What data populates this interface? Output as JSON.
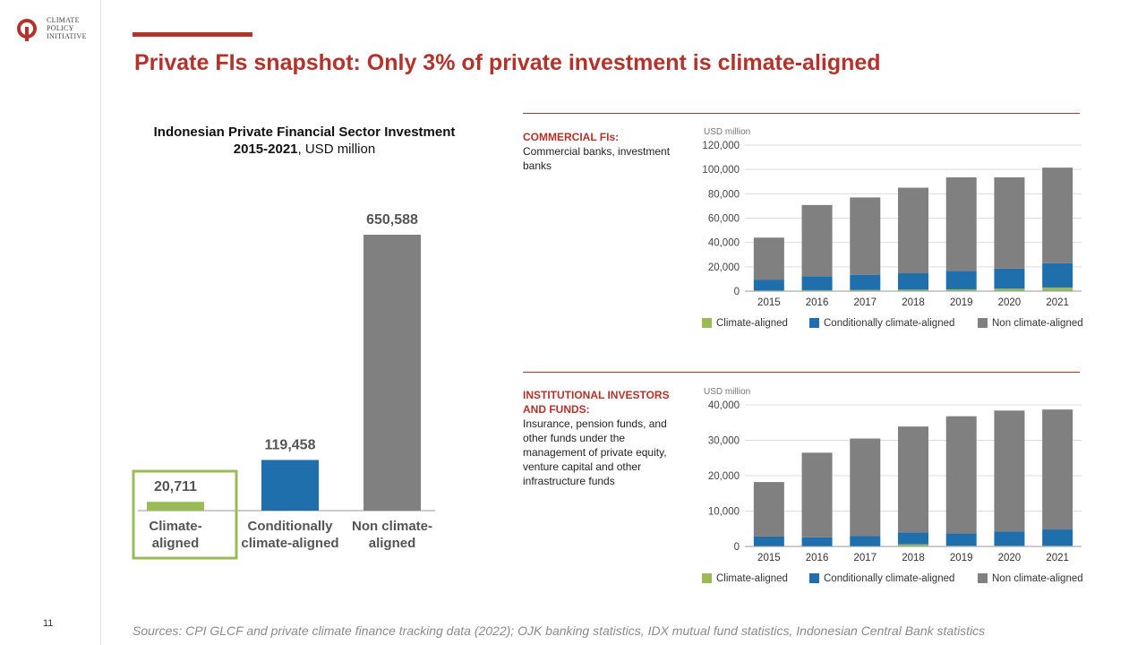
{
  "slide_number": "11",
  "logo": {
    "line1": "CLIMATE",
    "line2": "POLICY",
    "line3": "INITIATIVE"
  },
  "title": "Private FIs snapshot: Only 3% of private investment is climate-aligned",
  "left_chart_title_bold": "Indonesian Private Financial Sector Investment",
  "left_chart_title_bold2": "2015-2021",
  "left_chart_title_rest": ", USD million",
  "commercial": {
    "heading": "COMMERCIAL FIs:",
    "desc": "Commercial banks, investment banks"
  },
  "institutional": {
    "heading": "INSTITUTIONAL INVESTORS AND FUNDS:",
    "desc": "Insurance, pension funds, and other funds under the management of private equity, venture capital and other infrastructure funds"
  },
  "sources": "Sources: CPI GLCF and private climate finance tracking data (2022); OJK banking statistics, IDX mutual fund statistics, Indonesian Central Bank statistics",
  "colors": {
    "climate": "#9bbb59",
    "conditional": "#1f6fad",
    "non": "#808080",
    "accent": "#b5322b",
    "highlight": "#9bbb59"
  },
  "chart_data": [
    {
      "type": "bar",
      "title": "Indonesian Private Financial Sector Investment 2015-2021, USD million",
      "categories": [
        "Climate-aligned",
        "Conditionally climate-aligned",
        "Non climate-aligned"
      ],
      "category_lines": [
        [
          "Climate-",
          "aligned"
        ],
        [
          "Conditionally",
          "climate-aligned"
        ],
        [
          "Non climate-",
          "aligned"
        ]
      ],
      "values": [
        20711,
        119458,
        650588
      ],
      "value_labels": [
        "20,711",
        "119,458",
        "650,588"
      ],
      "highlighted": "Climate-aligned"
    },
    {
      "type": "bar",
      "stacked": true,
      "ylabel": "USD million",
      "ylim": [
        0,
        120000
      ],
      "ticks": [
        0,
        20000,
        40000,
        60000,
        80000,
        100000,
        120000
      ],
      "tick_labels": [
        "0",
        "20,000",
        "40,000",
        "60,000",
        "80,000",
        "100,000",
        "120,000"
      ],
      "categories": [
        "2015",
        "2016",
        "2017",
        "2018",
        "2019",
        "2020",
        "2021"
      ],
      "legend_position": "bottom",
      "series": [
        {
          "name": "Climate-aligned",
          "values": [
            500,
            800,
            1000,
            1200,
            1500,
            2000,
            3000
          ]
        },
        {
          "name": "Conditionally climate-aligned",
          "values": [
            9000,
            11500,
            12500,
            13500,
            15000,
            16500,
            20000
          ]
        },
        {
          "name": "Non climate-aligned",
          "values": [
            34500,
            58500,
            63500,
            70300,
            77000,
            75000,
            78500
          ]
        }
      ]
    },
    {
      "type": "bar",
      "stacked": true,
      "ylabel": "USD million",
      "ylim": [
        0,
        40000
      ],
      "ticks": [
        0,
        10000,
        20000,
        30000,
        40000
      ],
      "tick_labels": [
        "0",
        "10,000",
        "20,000",
        "30,000",
        "40,000"
      ],
      "categories": [
        "2015",
        "2016",
        "2017",
        "2018",
        "2019",
        "2020",
        "2021"
      ],
      "legend_position": "bottom",
      "series": [
        {
          "name": "Climate-aligned",
          "values": [
            50,
            100,
            100,
            600,
            200,
            200,
            200
          ]
        },
        {
          "name": "Conditionally climate-aligned",
          "values": [
            2750,
            2500,
            2900,
            3400,
            3500,
            4000,
            4600
          ]
        },
        {
          "name": "Non climate-aligned",
          "values": [
            15400,
            23900,
            27500,
            29900,
            33100,
            34200,
            33900
          ]
        }
      ]
    }
  ]
}
